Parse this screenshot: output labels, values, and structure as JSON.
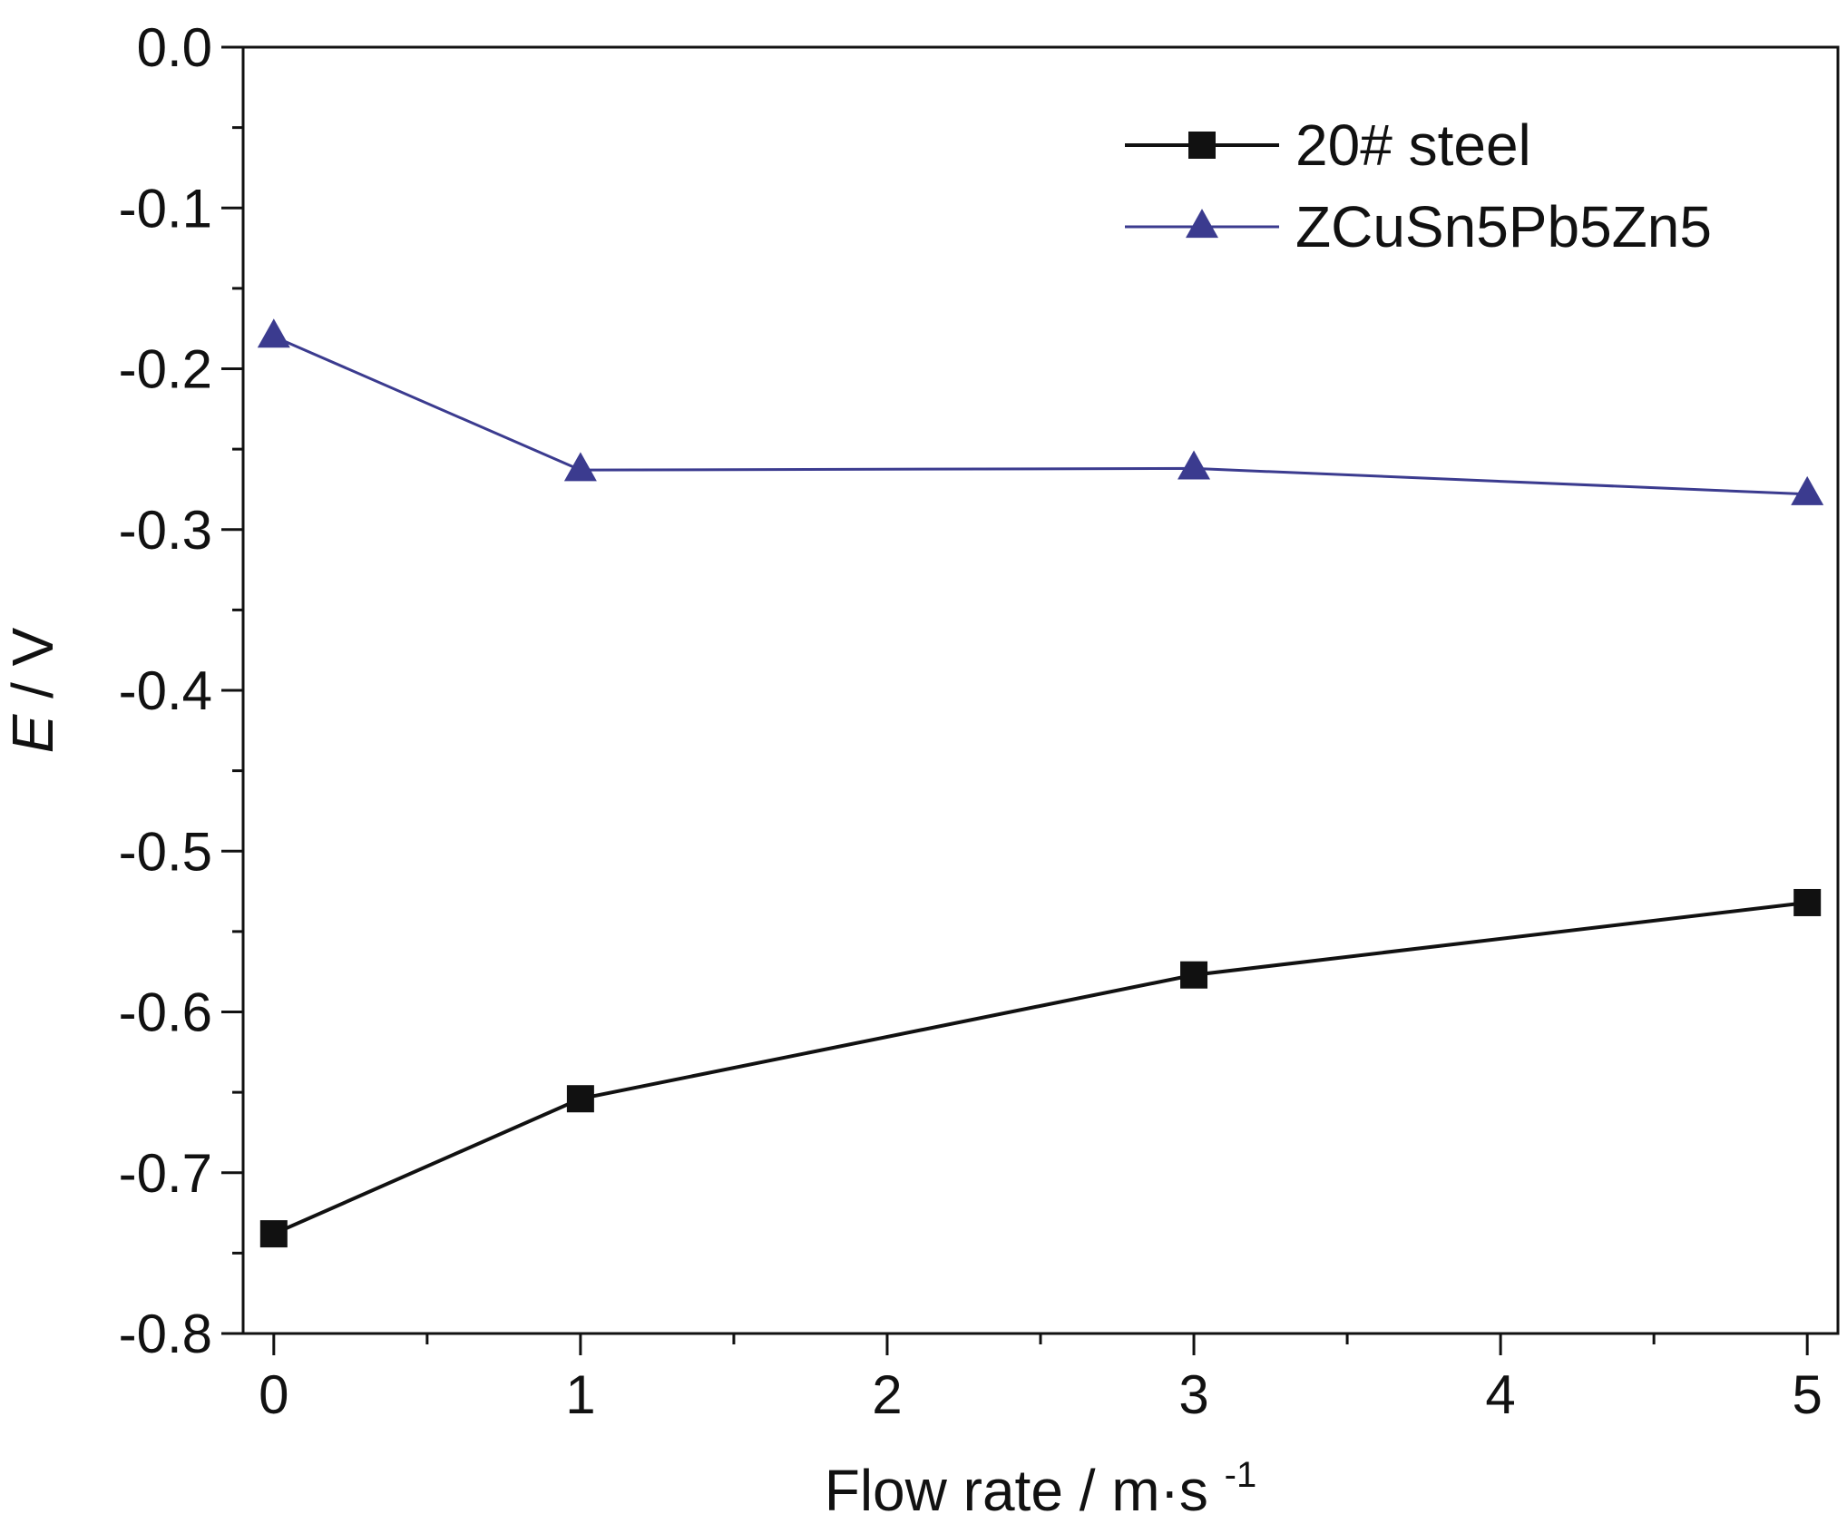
{
  "chart_data": {
    "type": "line",
    "title": "",
    "xlabel": {
      "text": "Flow rate / m·s",
      "superscript": "-1"
    },
    "ylabel": {
      "italic": "E",
      "rest": " / V"
    },
    "xlim": [
      -0.1,
      5.1
    ],
    "ylim": [
      -0.8,
      0.0
    ],
    "x_ticks": [
      0,
      1,
      2,
      3,
      4,
      5
    ],
    "x_tick_labels": [
      "0",
      "1",
      "2",
      "3",
      "4",
      "5"
    ],
    "y_ticks": [
      0.0,
      -0.1,
      -0.2,
      -0.3,
      -0.4,
      -0.5,
      -0.6,
      -0.7,
      -0.8
    ],
    "y_tick_labels": [
      "0.0",
      "-0.1",
      "-0.2",
      "-0.3",
      "-0.4",
      "-0.5",
      "-0.6",
      "-0.7",
      "-0.8"
    ],
    "grid": false,
    "legend_position": "top-right",
    "series": [
      {
        "name": "20# steel",
        "marker": "square",
        "color": "#111111",
        "x": [
          0,
          1,
          3,
          5
        ],
        "y": [
          -0.738,
          -0.654,
          -0.577,
          -0.532
        ]
      },
      {
        "name": "ZCuSn5Pb5Zn5",
        "marker": "triangle",
        "color": "#3b3b8f",
        "x": [
          0,
          1,
          3,
          5
        ],
        "y": [
          -0.18,
          -0.263,
          -0.262,
          -0.278
        ]
      }
    ]
  }
}
